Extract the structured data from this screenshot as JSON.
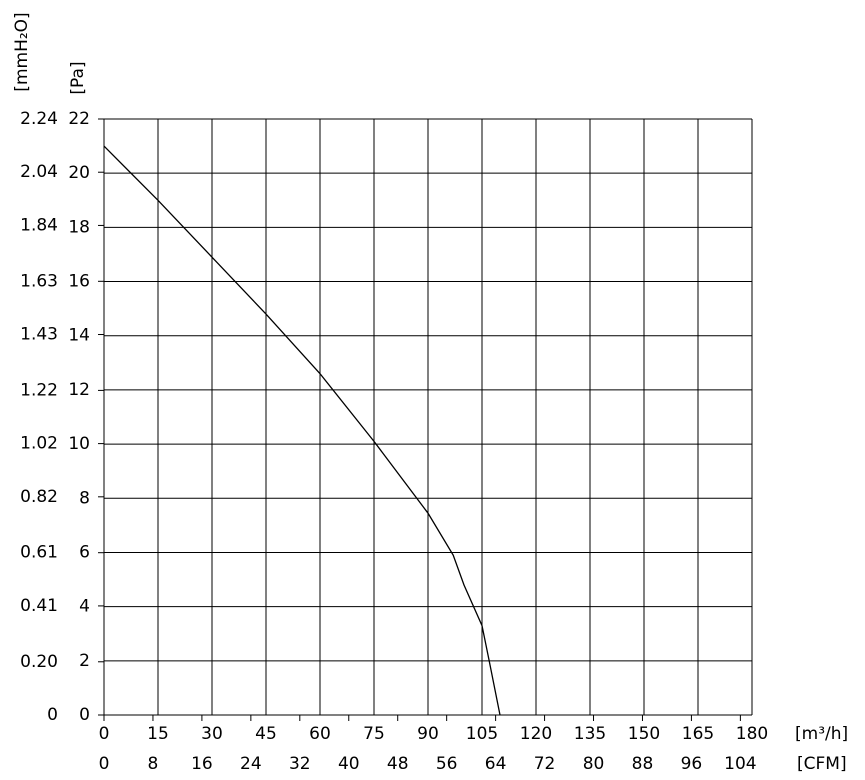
{
  "chart_data": {
    "type": "line",
    "x_label": "[m³/h]",
    "x2_label": "[CFM]",
    "y_label": "[Pa]",
    "y2_label": "[mmH₂O]",
    "x": [
      0,
      15,
      30,
      45,
      60,
      75,
      90,
      97,
      100,
      105,
      107,
      110
    ],
    "series": [
      {
        "color": "#000000",
        "values": [
          21.0,
          19.0,
          16.9,
          14.8,
          12.6,
          10.1,
          7.45,
          5.9,
          4.8,
          3.3,
          2.0,
          0
        ]
      }
    ],
    "xlim": [
      0,
      180
    ],
    "xticks": [
      0,
      15,
      30,
      45,
      60,
      75,
      90,
      105,
      120,
      135,
      150,
      165,
      180
    ],
    "x2lim": [
      0,
      105.9
    ],
    "x2ticks": [
      0,
      8,
      16,
      24,
      32,
      40,
      48,
      56,
      64,
      72,
      80,
      88,
      96,
      104
    ],
    "ylim": [
      0,
      22
    ],
    "yticks": [
      0,
      2,
      4,
      6,
      8,
      10,
      12,
      14,
      16,
      18,
      20,
      22
    ],
    "y2lim": [
      0,
      2.24
    ],
    "y2ticks": [
      0,
      {
        "value": 0.2,
        "label": "0.20"
      },
      0.41,
      0.61,
      0.82,
      1.02,
      1.22,
      1.43,
      1.63,
      1.84,
      2.04,
      2.24
    ],
    "grid": true
  }
}
